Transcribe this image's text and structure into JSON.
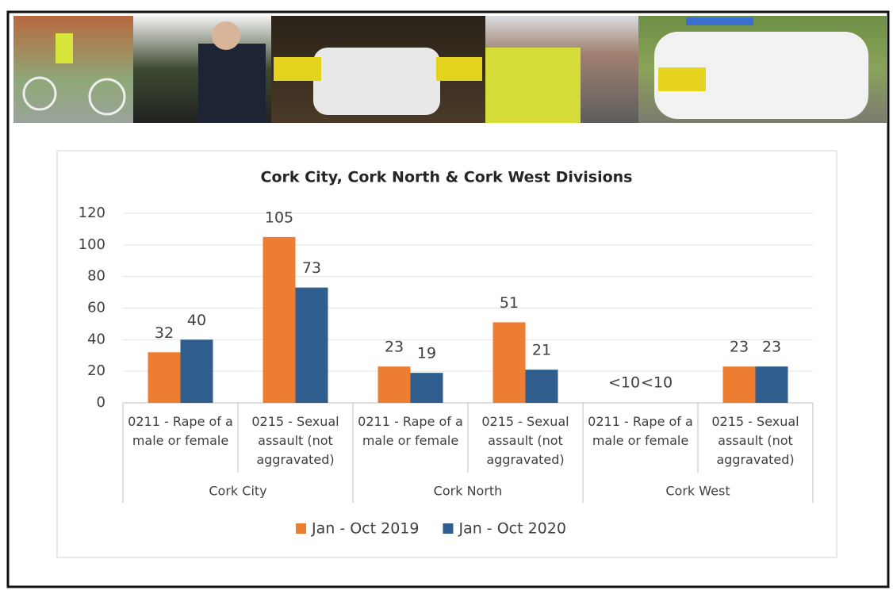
{
  "chart_data": {
    "type": "bar",
    "title": "Cork City, Cork North & Cork West Divisions",
    "categories": [
      "0211 - Rape of a male or female",
      "0215 - Sexual assault (not aggravated)",
      "0211 - Rape of a male or female",
      "0215 - Sexual assault (not aggravated)",
      "0211 - Rape of a male or female",
      "0215 - Sexual assault (not aggravated)"
    ],
    "groups": [
      "Cork City",
      "Cork North",
      "Cork West"
    ],
    "series": [
      {
        "name": "Jan - Oct 2019",
        "color": "#ed7d31",
        "values": [
          32,
          105,
          23,
          51,
          null,
          23
        ],
        "value_labels": [
          "32",
          "105",
          "23",
          "51",
          "<10",
          "23"
        ]
      },
      {
        "name": "Jan - Oct 2020",
        "color": "#2e5d8e",
        "values": [
          40,
          73,
          19,
          21,
          null,
          23
        ],
        "value_labels": [
          "40",
          "73",
          "19",
          "21",
          "<10",
          "23"
        ]
      }
    ],
    "ylim": [
      0,
      120
    ],
    "yticks": [
      0,
      20,
      40,
      60,
      80,
      100,
      120
    ],
    "grid": true,
    "legend": "bottom"
  }
}
